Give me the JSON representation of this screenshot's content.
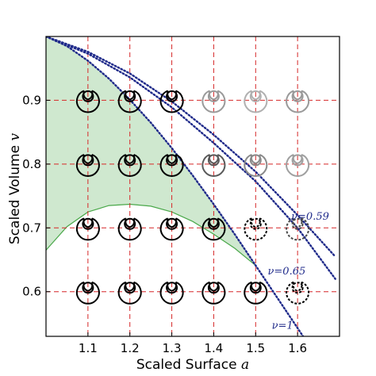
{
  "chart_data": {
    "type": "line",
    "xlabel": "Scaled Surface",
    "xlabel_var": "a",
    "ylabel": "Scaled Volume",
    "ylabel_var": "v",
    "xlim": [
      1.0,
      1.7
    ],
    "ylim": [
      0.53,
      1.0
    ],
    "x_ticks": [
      1.1,
      1.2,
      1.3,
      1.4,
      1.5,
      1.6
    ],
    "y_ticks": [
      0.6,
      0.7,
      0.8,
      0.9
    ],
    "grid": "dashed red at ticks",
    "series": [
      {
        "name": "ν=1",
        "style": "dotted",
        "color": "#1f2a8a",
        "points": [
          [
            1.0,
            1.0
          ],
          [
            1.05,
            0.985
          ],
          [
            1.1,
            0.962
          ],
          [
            1.15,
            0.934
          ],
          [
            1.2,
            0.901
          ],
          [
            1.25,
            0.865
          ],
          [
            1.3,
            0.825
          ],
          [
            1.35,
            0.782
          ],
          [
            1.4,
            0.737
          ],
          [
            1.45,
            0.69
          ],
          [
            1.5,
            0.641
          ],
          [
            1.55,
            0.592
          ],
          [
            1.6,
            0.543
          ],
          [
            1.625,
            0.518
          ]
        ]
      },
      {
        "name": "ν=0.65",
        "style": "dotted",
        "color": "#1f2a8a",
        "points": [
          [
            1.0,
            1.0
          ],
          [
            1.1,
            0.973
          ],
          [
            1.2,
            0.936
          ],
          [
            1.3,
            0.889
          ],
          [
            1.4,
            0.833
          ],
          [
            1.5,
            0.773
          ],
          [
            1.6,
            0.7
          ],
          [
            1.69,
            0.62
          ]
        ]
      },
      {
        "name": "ν=0.59",
        "style": "dotted",
        "color": "#1f2a8a",
        "points": [
          [
            1.0,
            1.0
          ],
          [
            1.1,
            0.976
          ],
          [
            1.2,
            0.942
          ],
          [
            1.3,
            0.898
          ],
          [
            1.4,
            0.846
          ],
          [
            1.5,
            0.788
          ],
          [
            1.6,
            0.72
          ],
          [
            1.69,
            0.655
          ]
        ]
      }
    ],
    "shaded_region": {
      "color": "#cfe8cf",
      "upper": [
        [
          1.0,
          1.0
        ],
        [
          1.05,
          0.985
        ],
        [
          1.1,
          0.962
        ],
        [
          1.15,
          0.934
        ],
        [
          1.2,
          0.901
        ],
        [
          1.25,
          0.865
        ],
        [
          1.3,
          0.825
        ],
        [
          1.35,
          0.782
        ],
        [
          1.4,
          0.737
        ],
        [
          1.45,
          0.69
        ],
        [
          1.5,
          0.641
        ]
      ],
      "lower": [
        [
          1.0,
          0.665
        ],
        [
          1.05,
          0.702
        ],
        [
          1.1,
          0.725
        ],
        [
          1.15,
          0.735
        ],
        [
          1.2,
          0.737
        ],
        [
          1.25,
          0.734
        ],
        [
          1.3,
          0.725
        ],
        [
          1.35,
          0.71
        ],
        [
          1.4,
          0.69
        ],
        [
          1.45,
          0.668
        ],
        [
          1.5,
          0.641
        ]
      ],
      "lower_color": "#4aa84a"
    },
    "annotations": [
      {
        "text": "ν=0.59",
        "x": 1.63,
        "y": 0.713
      },
      {
        "text": "ν=0.65",
        "x": 1.574,
        "y": 0.627
      },
      {
        "text": "ν=1",
        "x": 1.564,
        "y": 0.542
      }
    ],
    "shapes": [
      {
        "x": 1.1,
        "y": 0.9,
        "style": "solid",
        "color": "#000000"
      },
      {
        "x": 1.2,
        "y": 0.9,
        "style": "solid",
        "color": "#000000"
      },
      {
        "x": 1.3,
        "y": 0.9,
        "style": "solid",
        "color": "#000000"
      },
      {
        "x": 1.4,
        "y": 0.9,
        "style": "solid",
        "color": "#9a9a9a"
      },
      {
        "x": 1.5,
        "y": 0.9,
        "style": "solid",
        "color": "#b0b0b0"
      },
      {
        "x": 1.6,
        "y": 0.9,
        "style": "solid",
        "color": "#9a9a9a"
      },
      {
        "x": 1.1,
        "y": 0.8,
        "style": "solid",
        "color": "#000000"
      },
      {
        "x": 1.2,
        "y": 0.8,
        "style": "solid",
        "color": "#000000"
      },
      {
        "x": 1.3,
        "y": 0.8,
        "style": "solid",
        "color": "#000000"
      },
      {
        "x": 1.4,
        "y": 0.8,
        "style": "solid",
        "color": "#5a5a5a"
      },
      {
        "x": 1.5,
        "y": 0.8,
        "style": "solid",
        "color": "#8a8a8a"
      },
      {
        "x": 1.6,
        "y": 0.8,
        "style": "solid",
        "color": "#a0a0a0"
      },
      {
        "x": 1.1,
        "y": 0.7,
        "style": "solid",
        "color": "#000000"
      },
      {
        "x": 1.2,
        "y": 0.7,
        "style": "solid",
        "color": "#000000"
      },
      {
        "x": 1.3,
        "y": 0.7,
        "style": "solid",
        "color": "#000000"
      },
      {
        "x": 1.4,
        "y": 0.7,
        "style": "solid",
        "color": "#000000"
      },
      {
        "x": 1.5,
        "y": 0.7,
        "style": "dashed",
        "color": "#000000"
      },
      {
        "x": 1.6,
        "y": 0.7,
        "style": "dashed",
        "color": "#4a4a4a"
      },
      {
        "x": 1.1,
        "y": 0.6,
        "style": "solid",
        "color": "#000000"
      },
      {
        "x": 1.2,
        "y": 0.6,
        "style": "solid",
        "color": "#000000"
      },
      {
        "x": 1.3,
        "y": 0.6,
        "style": "solid",
        "color": "#000000"
      },
      {
        "x": 1.4,
        "y": 0.6,
        "style": "solid",
        "color": "#000000"
      },
      {
        "x": 1.5,
        "y": 0.6,
        "style": "solid",
        "color": "#000000"
      },
      {
        "x": 1.6,
        "y": 0.6,
        "style": "dashed",
        "color": "#000000"
      }
    ]
  }
}
